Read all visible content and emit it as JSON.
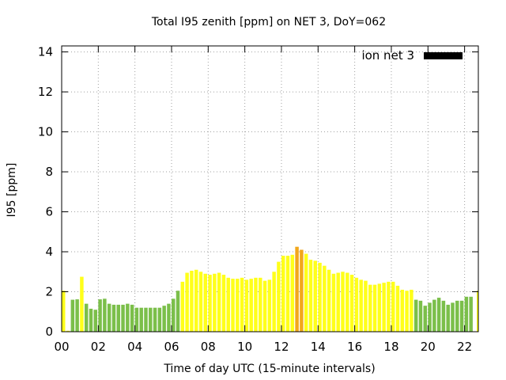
{
  "chart_data": {
    "type": "bar",
    "title": "Total I95 zenith [ppm] on NET 3, DoY=062",
    "xlabel": "Time of day UTC (15-minute intervals)",
    "ylabel": "I95 [ppm]",
    "xlim": [
      0,
      22.75
    ],
    "ylim": [
      0,
      14.3
    ],
    "bar_width_hours": 0.25,
    "x_ticks": [
      {
        "value": 0,
        "label": "00"
      },
      {
        "value": 2,
        "label": "02"
      },
      {
        "value": 4,
        "label": "04"
      },
      {
        "value": 6,
        "label": "06"
      },
      {
        "value": 8,
        "label": "08"
      },
      {
        "value": 10,
        "label": "10"
      },
      {
        "value": 12,
        "label": "12"
      },
      {
        "value": 14,
        "label": "14"
      },
      {
        "value": 16,
        "label": "16"
      },
      {
        "value": 18,
        "label": "18"
      },
      {
        "value": 20,
        "label": "20"
      },
      {
        "value": 22,
        "label": "22"
      }
    ],
    "y_ticks": [
      {
        "value": 0,
        "label": "0"
      },
      {
        "value": 2,
        "label": "2"
      },
      {
        "value": 4,
        "label": "4"
      },
      {
        "value": 6,
        "label": "6"
      },
      {
        "value": 8,
        "label": "8"
      },
      {
        "value": 10,
        "label": "10"
      },
      {
        "value": 12,
        "label": "12"
      },
      {
        "value": 14,
        "label": "14"
      }
    ],
    "grid": true,
    "legend": {
      "label": "ion net 3",
      "position": "top-right",
      "color": "#000000"
    },
    "colors": {
      "green": "#7bbf4a",
      "yellow": "#ffff1a",
      "orange": "#f2a71b"
    },
    "series": [
      {
        "values": [
          2.05,
          0.05,
          1.6,
          1.62,
          2.75,
          1.4,
          1.15,
          1.1,
          1.62,
          1.65,
          1.4,
          1.35,
          1.35,
          1.35,
          1.4,
          1.35,
          1.2,
          1.2,
          1.2,
          1.2,
          1.2,
          1.2,
          1.3,
          1.4,
          1.65,
          2.05,
          2.5,
          2.95,
          3.05,
          3.1,
          3.0,
          2.9,
          2.85,
          2.9,
          2.95,
          2.85,
          2.7,
          2.65,
          2.65,
          2.7,
          2.6,
          2.65,
          2.7,
          2.7,
          2.55,
          2.6,
          3.0,
          3.5,
          3.8,
          3.8,
          3.85,
          4.25,
          4.1,
          3.9,
          3.6,
          3.55,
          3.45,
          3.3,
          3.1,
          2.9,
          2.95,
          3.0,
          2.95,
          2.85,
          2.7,
          2.6,
          2.55,
          2.35,
          2.35,
          2.4,
          2.45,
          2.5,
          2.5,
          2.3,
          2.1,
          2.05,
          2.1,
          1.6,
          1.55,
          1.3,
          1.45,
          1.6,
          1.7,
          1.55,
          1.35,
          1.45,
          1.55,
          1.55,
          1.75,
          1.75
        ],
        "colors": [
          "yellow",
          "yellow",
          "green",
          "green",
          "yellow",
          "green",
          "green",
          "green",
          "green",
          "green",
          "green",
          "green",
          "green",
          "green",
          "green",
          "green",
          "green",
          "green",
          "green",
          "green",
          "green",
          "green",
          "green",
          "green",
          "green",
          "green",
          "yellow",
          "yellow",
          "yellow",
          "yellow",
          "yellow",
          "yellow",
          "yellow",
          "yellow",
          "yellow",
          "yellow",
          "yellow",
          "yellow",
          "yellow",
          "yellow",
          "yellow",
          "yellow",
          "yellow",
          "yellow",
          "yellow",
          "yellow",
          "yellow",
          "yellow",
          "yellow",
          "yellow",
          "yellow",
          "orange",
          "orange",
          "yellow",
          "yellow",
          "yellow",
          "yellow",
          "yellow",
          "yellow",
          "yellow",
          "yellow",
          "yellow",
          "yellow",
          "yellow",
          "yellow",
          "yellow",
          "yellow",
          "yellow",
          "yellow",
          "yellow",
          "yellow",
          "yellow",
          "yellow",
          "yellow",
          "yellow",
          "yellow",
          "yellow",
          "green",
          "green",
          "green",
          "green",
          "green",
          "green",
          "green",
          "green",
          "green",
          "green",
          "green",
          "green",
          "green"
        ]
      }
    ],
    "tail_bar": {
      "x": 22.75,
      "value": 2.05,
      "color": "yellow"
    }
  }
}
